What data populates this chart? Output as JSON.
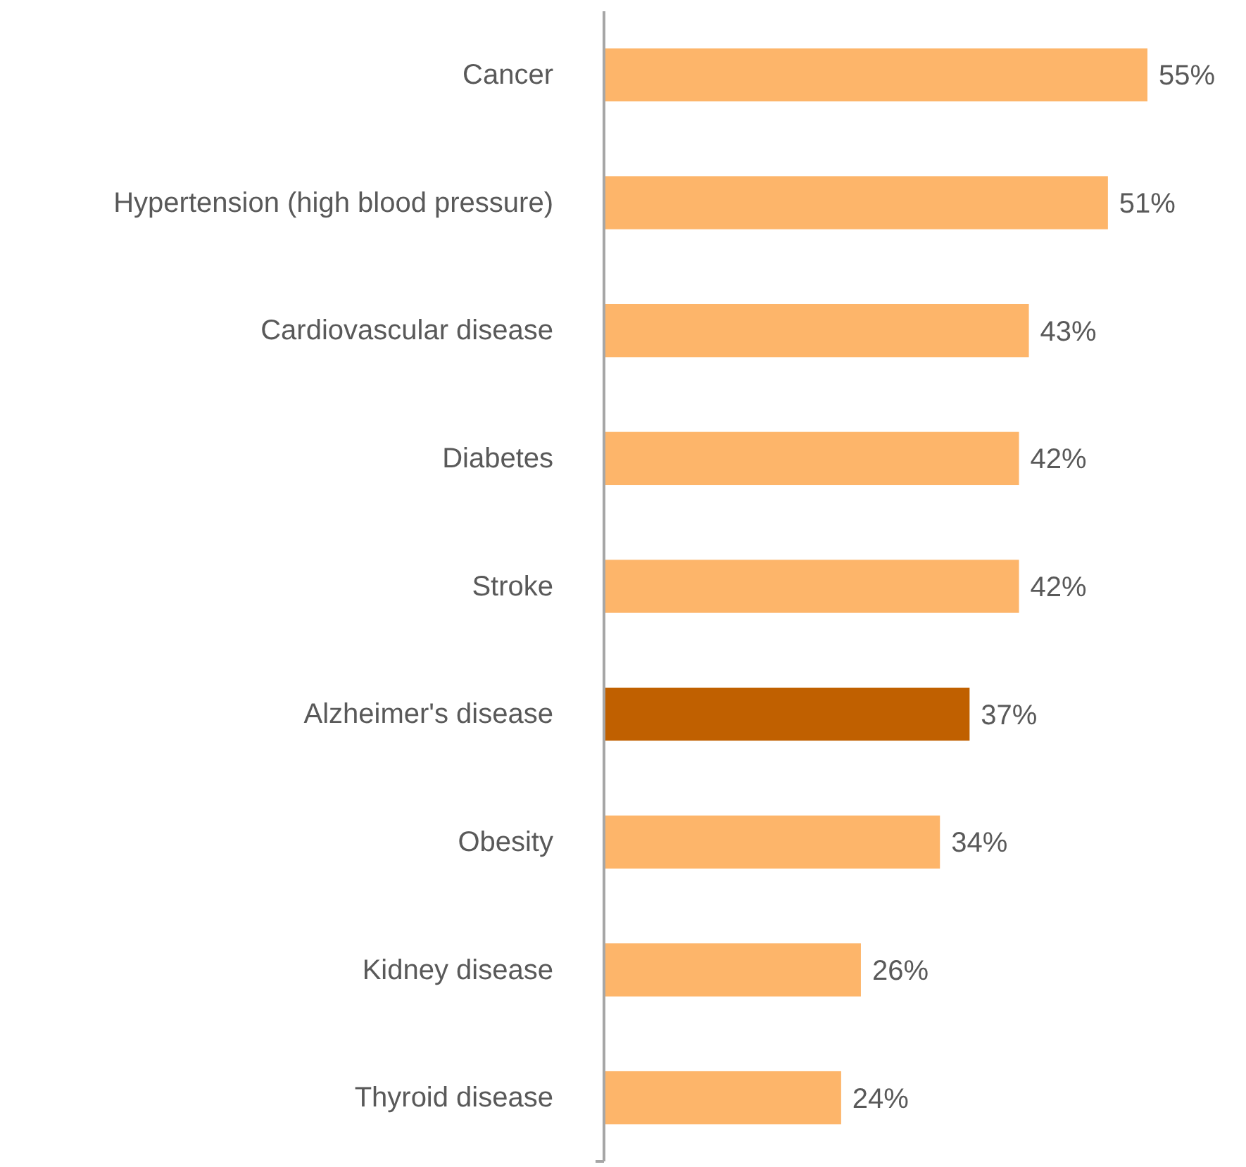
{
  "chart_data": {
    "type": "bar",
    "orientation": "horizontal",
    "categories": [
      "Cancer",
      "Hypertension (high blood pressure)",
      "Cardiovascular disease",
      "Diabetes",
      "Stroke",
      "Alzheimer's disease",
      "Obesity",
      "Kidney disease",
      "Thyroid disease"
    ],
    "values": [
      55,
      51,
      43,
      42,
      42,
      37,
      34,
      26,
      24
    ],
    "value_labels": [
      "55%",
      "51%",
      "43%",
      "42%",
      "42%",
      "37%",
      "34%",
      "26%",
      "24%"
    ],
    "colors": [
      "#fdb56a",
      "#fdb56a",
      "#fdb56a",
      "#fdb56a",
      "#fdb56a",
      "#c06000",
      "#fdb56a",
      "#fdb56a",
      "#fdb56a"
    ],
    "tick_labels": "y"
  }
}
